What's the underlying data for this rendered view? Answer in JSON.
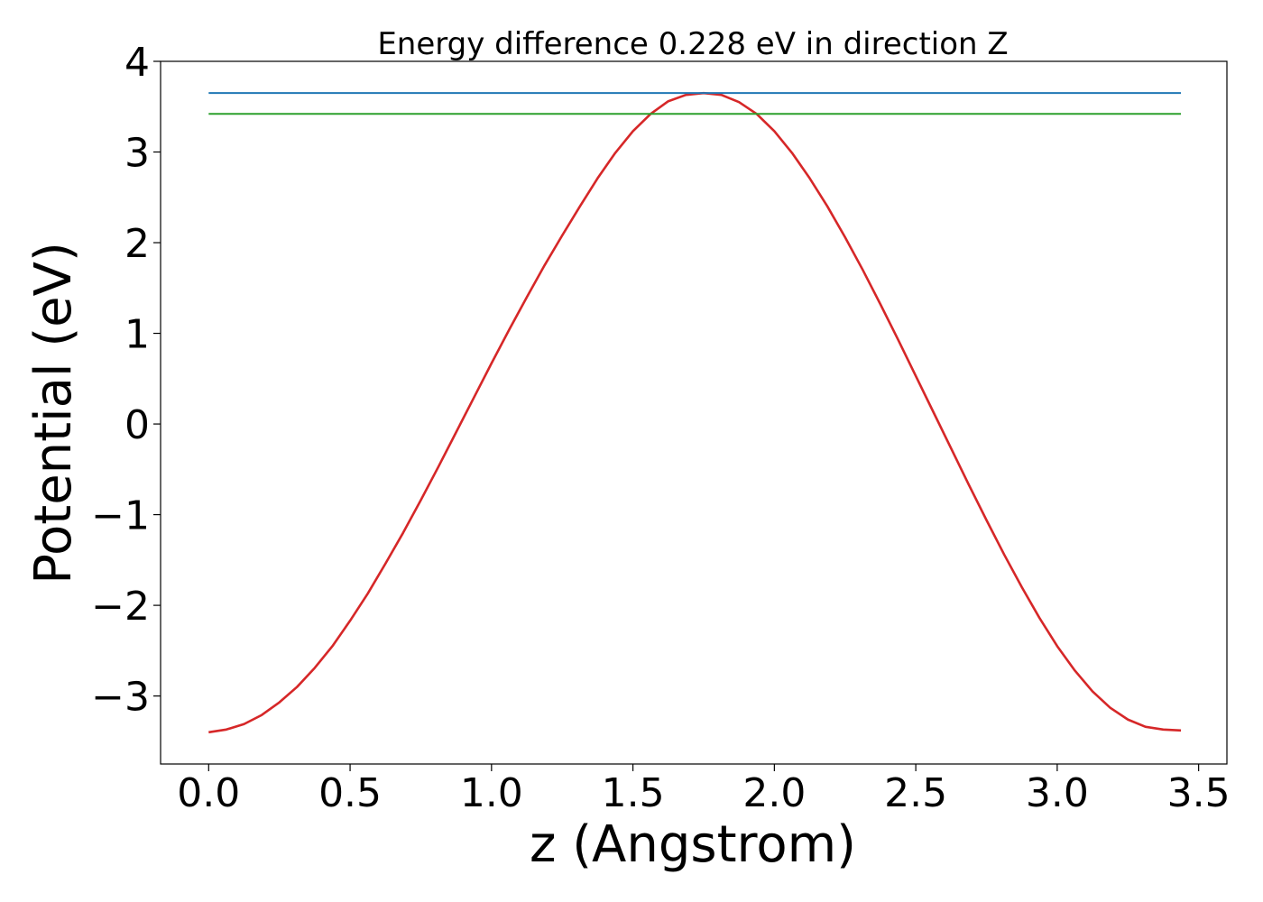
{
  "chart_data": {
    "type": "line",
    "title": "Energy difference 0.228 eV in direction Z",
    "xlabel": "z (Angstrom)",
    "ylabel": "Potential (eV)",
    "xlim": [
      -0.17,
      3.6
    ],
    "ylim": [
      -3.75,
      4.0
    ],
    "xticks": [
      0.0,
      0.5,
      1.0,
      1.5,
      2.0,
      2.5,
      3.0,
      3.5
    ],
    "xtick_labels": [
      "0.0",
      "0.5",
      "1.0",
      "1.5",
      "2.0",
      "2.5",
      "3.0",
      "3.5"
    ],
    "yticks": [
      -3,
      -2,
      -1,
      0,
      1,
      2,
      3,
      4
    ],
    "ytick_labels": [
      "−3",
      "−2",
      "−1",
      "0",
      "1",
      "2",
      "3",
      "4"
    ],
    "grid": false,
    "legend": "none",
    "series": [
      {
        "kind": "curve",
        "color": "#d62728",
        "x": [
          0.0,
          0.0625,
          0.125,
          0.1875,
          0.25,
          0.3125,
          0.375,
          0.4375,
          0.5,
          0.5625,
          0.625,
          0.6875,
          0.75,
          0.8125,
          0.875,
          0.9375,
          1.0,
          1.0625,
          1.125,
          1.1875,
          1.25,
          1.3125,
          1.375,
          1.4375,
          1.5,
          1.5625,
          1.625,
          1.6875,
          1.75,
          1.8125,
          1.875,
          1.9375,
          2.0,
          2.0625,
          2.125,
          2.1875,
          2.25,
          2.3125,
          2.375,
          2.4375,
          2.5,
          2.5625,
          2.625,
          2.6875,
          2.75,
          2.8125,
          2.875,
          2.9375,
          3.0,
          3.0625,
          3.125,
          3.1875,
          3.25,
          3.3125,
          3.375,
          3.4375
        ],
        "y": [
          -3.4,
          -3.37,
          -3.31,
          -3.21,
          -3.07,
          -2.9,
          -2.69,
          -2.45,
          -2.17,
          -1.87,
          -1.54,
          -1.2,
          -0.84,
          -0.47,
          -0.09,
          0.29,
          0.67,
          1.04,
          1.4,
          1.75,
          2.08,
          2.4,
          2.71,
          2.99,
          3.23,
          3.42,
          3.56,
          3.63,
          3.65,
          3.63,
          3.55,
          3.42,
          3.23,
          2.99,
          2.71,
          2.4,
          2.06,
          1.7,
          1.32,
          0.93,
          0.53,
          0.13,
          -0.27,
          -0.67,
          -1.06,
          -1.44,
          -1.8,
          -2.14,
          -2.45,
          -2.72,
          -2.95,
          -3.13,
          -3.26,
          -3.34,
          -3.37,
          -3.38
        ]
      },
      {
        "kind": "hline",
        "color": "#1f77b4",
        "y": 3.65,
        "x_range": [
          0.0,
          3.4375
        ]
      },
      {
        "kind": "hline",
        "color": "#2ca02c",
        "y": 3.42,
        "x_range": [
          0.0,
          3.4375
        ]
      }
    ]
  }
}
